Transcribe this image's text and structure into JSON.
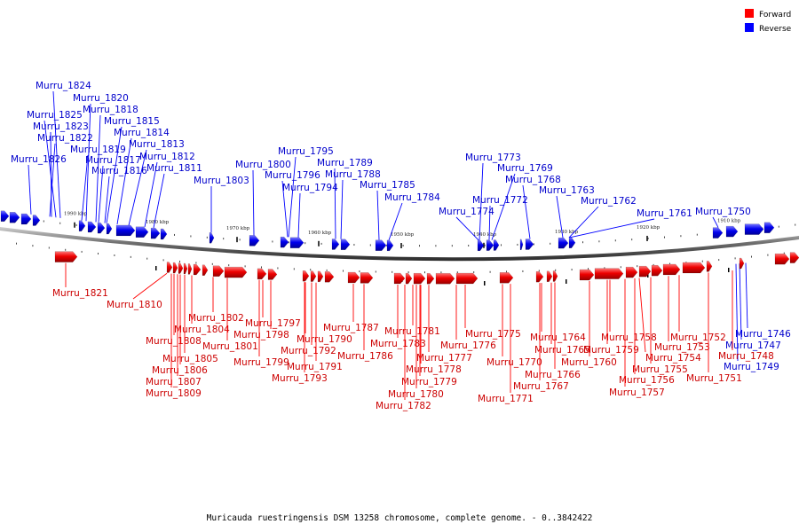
{
  "legend": [
    {
      "label": "Forward",
      "color": "#ff0000"
    },
    {
      "label": "Reverse",
      "color": "#0000ff"
    }
  ],
  "caption": "Muricauda ruestringensis DSM 13258 chromosome, complete genome. - 0..3842422",
  "ticks": [
    {
      "label": "1990 kbp"
    },
    {
      "label": "1980 kbp"
    },
    {
      "label": "1970 kbp"
    },
    {
      "label": "1960 kbp"
    },
    {
      "label": "1950 kbp"
    },
    {
      "label": "1940 kbp"
    },
    {
      "label": "1930 kbp"
    },
    {
      "label": "1920 kbp"
    },
    {
      "label": "1910 kbp"
    }
  ],
  "reverse_genes": [
    "Murru_1824",
    "Murru_1820",
    "Murru_1818",
    "Murru_1825",
    "Murru_1815",
    "Murru_1823",
    "Murru_1814",
    "Murru_1822",
    "Murru_1813",
    "Murru_1819",
    "Murru_1812",
    "Murru_1817",
    "Murru_1826",
    "Murru_1816",
    "Murru_1811",
    "Murru_1803",
    "Murru_1800",
    "Murru_1795",
    "Murru_1789",
    "Murru_1796",
    "Murru_1788",
    "Murru_1794",
    "Murru_1785",
    "Murru_1784",
    "Murru_1773",
    "Murru_1769",
    "Murru_1768",
    "Murru_1772",
    "Murru_1774",
    "Murru_1763",
    "Murru_1762",
    "Murru_1761",
    "Murru_1750",
    "Murru_1746",
    "Murru_1747",
    "Murru_1749"
  ],
  "forward_genes": [
    "Murru_1821",
    "Murru_1810",
    "Murru_1802",
    "Murru_1804",
    "Murru_1801",
    "Murru_1808",
    "Murru_1805",
    "Murru_1806",
    "Murru_1807",
    "Murru_1809",
    "Murru_1797",
    "Murru_1798",
    "Murru_1799",
    "Murru_1790",
    "Murru_1792",
    "Murru_1791",
    "Murru_1793",
    "Murru_1787",
    "Murru_1786",
    "Murru_1783",
    "Murru_1781",
    "Murru_1777",
    "Murru_1778",
    "Murru_1779",
    "Murru_1780",
    "Murru_1782",
    "Murru_1775",
    "Murru_1776",
    "Murru_1770",
    "Murru_1771",
    "Murru_1764",
    "Murru_1765",
    "Murru_1766",
    "Murru_1767",
    "Murru_1760",
    "Murru_1758",
    "Murru_1759",
    "Murru_1754",
    "Murru_1755",
    "Murru_1756",
    "Murru_1757",
    "Murru_1752",
    "Murru_1753",
    "Murru_1751",
    "Murru_1748"
  ]
}
